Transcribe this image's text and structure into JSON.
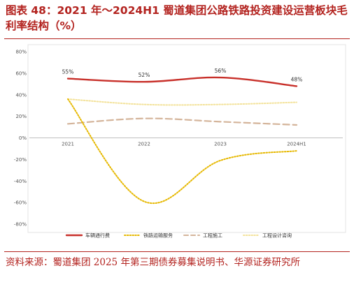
{
  "header": {
    "title": "图表 48：2021 年～2024H1 蜀道集团公路铁路投资建设运营板块毛利率结构（%）"
  },
  "footer": {
    "source": "资料来源：蜀道集团 2025 年第三期债券募集说明书、华源证券研究所"
  },
  "chart_data": {
    "type": "line",
    "categories": [
      "2021",
      "2022",
      "2023",
      "2024H1"
    ],
    "ylim": [
      -80,
      80
    ],
    "yticks": [
      80,
      60,
      40,
      20,
      0,
      -20,
      -40,
      -60,
      -80
    ],
    "ytick_labels": [
      "80%",
      "60%",
      "40%",
      "20%",
      "0%",
      "-20%",
      "-40%",
      "-60%",
      "-80%"
    ],
    "grid": false,
    "legend_position": "bottom",
    "series": [
      {
        "name": "车辆通行费",
        "values": [
          55,
          52,
          56,
          48
        ],
        "color": "#c8302a",
        "style": "solid",
        "labels": [
          "55%",
          "52%",
          "56%",
          "48%"
        ]
      },
      {
        "name": "铁路运输服务",
        "values": [
          36,
          -59,
          -21,
          -12
        ],
        "color": "#e6b800",
        "style": "dotted"
      },
      {
        "name": "工程施工",
        "values": [
          13,
          18,
          15,
          12
        ],
        "color": "#d4b49a",
        "style": "dashed"
      },
      {
        "name": "工程设计咨询",
        "values": [
          36,
          31,
          31,
          33
        ],
        "color": "#f3e29a",
        "style": "dotted"
      }
    ]
  }
}
